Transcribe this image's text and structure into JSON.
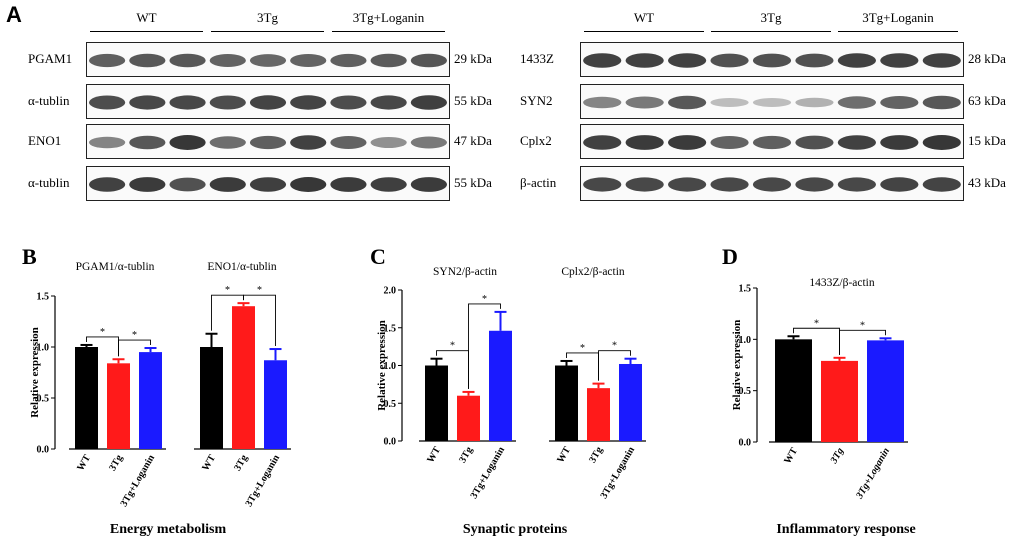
{
  "panel_a": {
    "letter": "A",
    "left": {
      "groups": [
        "WT",
        "3Tg",
        "3Tg+Loganin"
      ],
      "rows": [
        {
          "label": "PGAM1",
          "kda": "29 kDa",
          "intensity": [
            0.72,
            0.75,
            0.75,
            0.7,
            0.68,
            0.7,
            0.72,
            0.74,
            0.76
          ]
        },
        {
          "label": "α-tublin",
          "kda": "55 kDa",
          "intensity": [
            0.8,
            0.82,
            0.82,
            0.8,
            0.84,
            0.84,
            0.8,
            0.82,
            0.86
          ]
        },
        {
          "label": "ENO1",
          "kda": "47 kDa",
          "intensity": [
            0.55,
            0.75,
            0.9,
            0.65,
            0.72,
            0.85,
            0.7,
            0.5,
            0.6
          ]
        },
        {
          "label": "α-tublin",
          "kda": "55 kDa",
          "intensity": [
            0.85,
            0.88,
            0.78,
            0.88,
            0.86,
            0.9,
            0.88,
            0.86,
            0.88
          ]
        }
      ]
    },
    "right": {
      "groups": [
        "WT",
        "3Tg",
        "3Tg+Loganin"
      ],
      "rows": [
        {
          "label": "1433Z",
          "kda": "28 kDa",
          "intensity": [
            0.85,
            0.85,
            0.85,
            0.78,
            0.78,
            0.78,
            0.85,
            0.85,
            0.85
          ]
        },
        {
          "label": "SYN2",
          "kda": "63 kDa",
          "intensity": [
            0.55,
            0.6,
            0.75,
            0.3,
            0.3,
            0.35,
            0.65,
            0.7,
            0.75
          ]
        },
        {
          "label": "Cplx2",
          "kda": "15 kDa",
          "intensity": [
            0.85,
            0.88,
            0.88,
            0.7,
            0.72,
            0.78,
            0.85,
            0.88,
            0.9
          ]
        },
        {
          "label": "β-actin",
          "kda": "43 kDa",
          "intensity": [
            0.82,
            0.82,
            0.82,
            0.82,
            0.82,
            0.82,
            0.82,
            0.84,
            0.84
          ]
        }
      ]
    }
  },
  "colors": {
    "wt": "#000000",
    "tg": "#ff1a1a",
    "log": "#1a1aff"
  },
  "chart_data": [
    {
      "panel": "B",
      "type": "bar",
      "ylabel": "Relative expression",
      "ylim": [
        0,
        1.5
      ],
      "yticks": [
        "0.0",
        "0.5",
        "1.0",
        "1.5"
      ],
      "categories": [
        "WT",
        "3Tg",
        "3Tg+Loganin"
      ],
      "groups": [
        {
          "title": "PGAM1/α-tublin",
          "values": [
            1.0,
            0.84,
            0.95
          ],
          "errors": [
            0.02,
            0.04,
            0.04
          ]
        },
        {
          "title": "ENO1/α-tublin",
          "values": [
            1.0,
            1.4,
            0.87
          ],
          "errors": [
            0.13,
            0.03,
            0.11
          ]
        }
      ],
      "significance": "*",
      "footer": "Energy metabolism"
    },
    {
      "panel": "C",
      "type": "bar",
      "ylabel": "Relative expression",
      "ylim": [
        0,
        2.0
      ],
      "yticks": [
        "0.0",
        "0.5",
        "1.0",
        "1.5",
        "2.0"
      ],
      "categories": [
        "WT",
        "3Tg",
        "3Tg+Loganin"
      ],
      "groups": [
        {
          "title": "SYN2/β-actin",
          "values": [
            1.0,
            0.6,
            1.46
          ],
          "errors": [
            0.09,
            0.05,
            0.25
          ]
        },
        {
          "title": "Cplx2/β-actin",
          "values": [
            1.0,
            0.7,
            1.02
          ],
          "errors": [
            0.06,
            0.06,
            0.07
          ]
        }
      ],
      "significance": "*",
      "footer": "Synaptic proteins"
    },
    {
      "panel": "D",
      "type": "bar",
      "ylabel": "Relative expression",
      "ylim": [
        0,
        1.5
      ],
      "yticks": [
        "0.0",
        "0.5",
        "1.0",
        "1.5"
      ],
      "categories": [
        "WT",
        "3Tg",
        "3Tg+Loganin"
      ],
      "groups": [
        {
          "title": "1433Z/β-actin",
          "values": [
            1.0,
            0.79,
            0.99
          ],
          "errors": [
            0.03,
            0.03,
            0.02
          ]
        }
      ],
      "significance": "*",
      "footer": "Inflammatory response"
    }
  ]
}
